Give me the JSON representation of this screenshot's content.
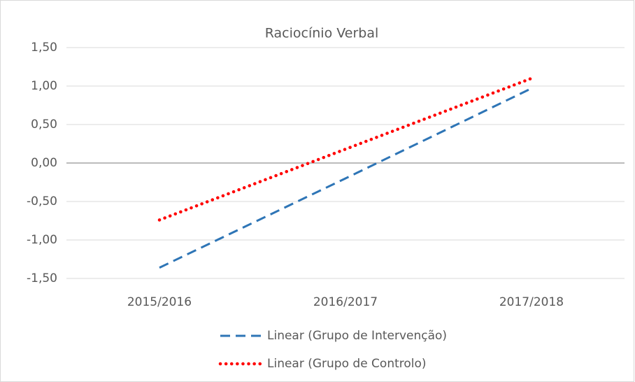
{
  "chart_data": {
    "type": "line",
    "title": "Raciocínio Verbal",
    "categories": [
      "2015/2016",
      "2016/2017",
      "2017/2018"
    ],
    "series": [
      {
        "name": "Linear (Grupo de Intervenção)",
        "color": "#2e75b6",
        "dash": "dashed",
        "values": [
          -1.36,
          -0.2,
          0.97
        ]
      },
      {
        "name": "Linear (Grupo de Controlo)",
        "color": "#ff0000",
        "dash": "dotted",
        "values": [
          -0.74,
          0.18,
          1.1
        ]
      }
    ],
    "ylim": [
      -1.5,
      1.5
    ],
    "yticks": [
      {
        "value": -1.5,
        "label": "-1,50"
      },
      {
        "value": -1,
        "label": "-1,00"
      },
      {
        "value": -0.5,
        "label": "-0,50"
      },
      {
        "value": 0,
        "label": "0,00"
      },
      {
        "value": 0.5,
        "label": "0,50"
      },
      {
        "value": 1,
        "label": "1,00"
      },
      {
        "value": 1.5,
        "label": "1,50"
      }
    ],
    "grid": true,
    "legend": "bottom"
  }
}
